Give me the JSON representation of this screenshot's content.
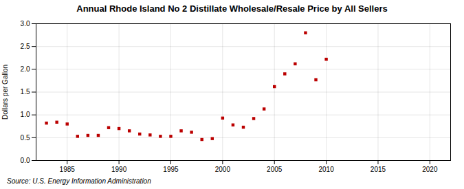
{
  "chart_data": {
    "type": "scatter",
    "title": "Annual Rhode Island No 2 Distillate Wholesale/Resale Price by All Sellers",
    "ylabel": "Dollars per Gallon",
    "source": "Source: U.S. Energy Information Administration",
    "x": [
      1983,
      1984,
      1985,
      1986,
      1987,
      1988,
      1989,
      1990,
      1991,
      1992,
      1993,
      1994,
      1995,
      1996,
      1997,
      1998,
      1999,
      2000,
      2001,
      2002,
      2003,
      2004,
      2005,
      2006,
      2007,
      2008,
      2009,
      2010
    ],
    "values": [
      0.82,
      0.84,
      0.8,
      0.53,
      0.55,
      0.55,
      0.72,
      0.7,
      0.65,
      0.58,
      0.56,
      0.53,
      0.53,
      0.65,
      0.62,
      0.46,
      0.48,
      0.93,
      0.78,
      0.73,
      0.92,
      1.13,
      1.62,
      1.9,
      2.12,
      2.8,
      1.77,
      2.22
    ],
    "color": "#bb0000",
    "marker": "square",
    "xlim": [
      1982,
      2022
    ],
    "ylim": [
      0.0,
      3.0
    ],
    "xticks": [
      1985,
      1990,
      1995,
      2000,
      2005,
      2010,
      2015,
      2020
    ],
    "yticks": [
      {
        "value": 0,
        "label": "0.0"
      },
      0.5,
      {
        "value": 1,
        "label": "1.0"
      },
      1.5,
      {
        "value": 2,
        "label": "2.0"
      },
      2.5,
      {
        "value": 3,
        "label": "3.0"
      }
    ],
    "grid": true
  }
}
